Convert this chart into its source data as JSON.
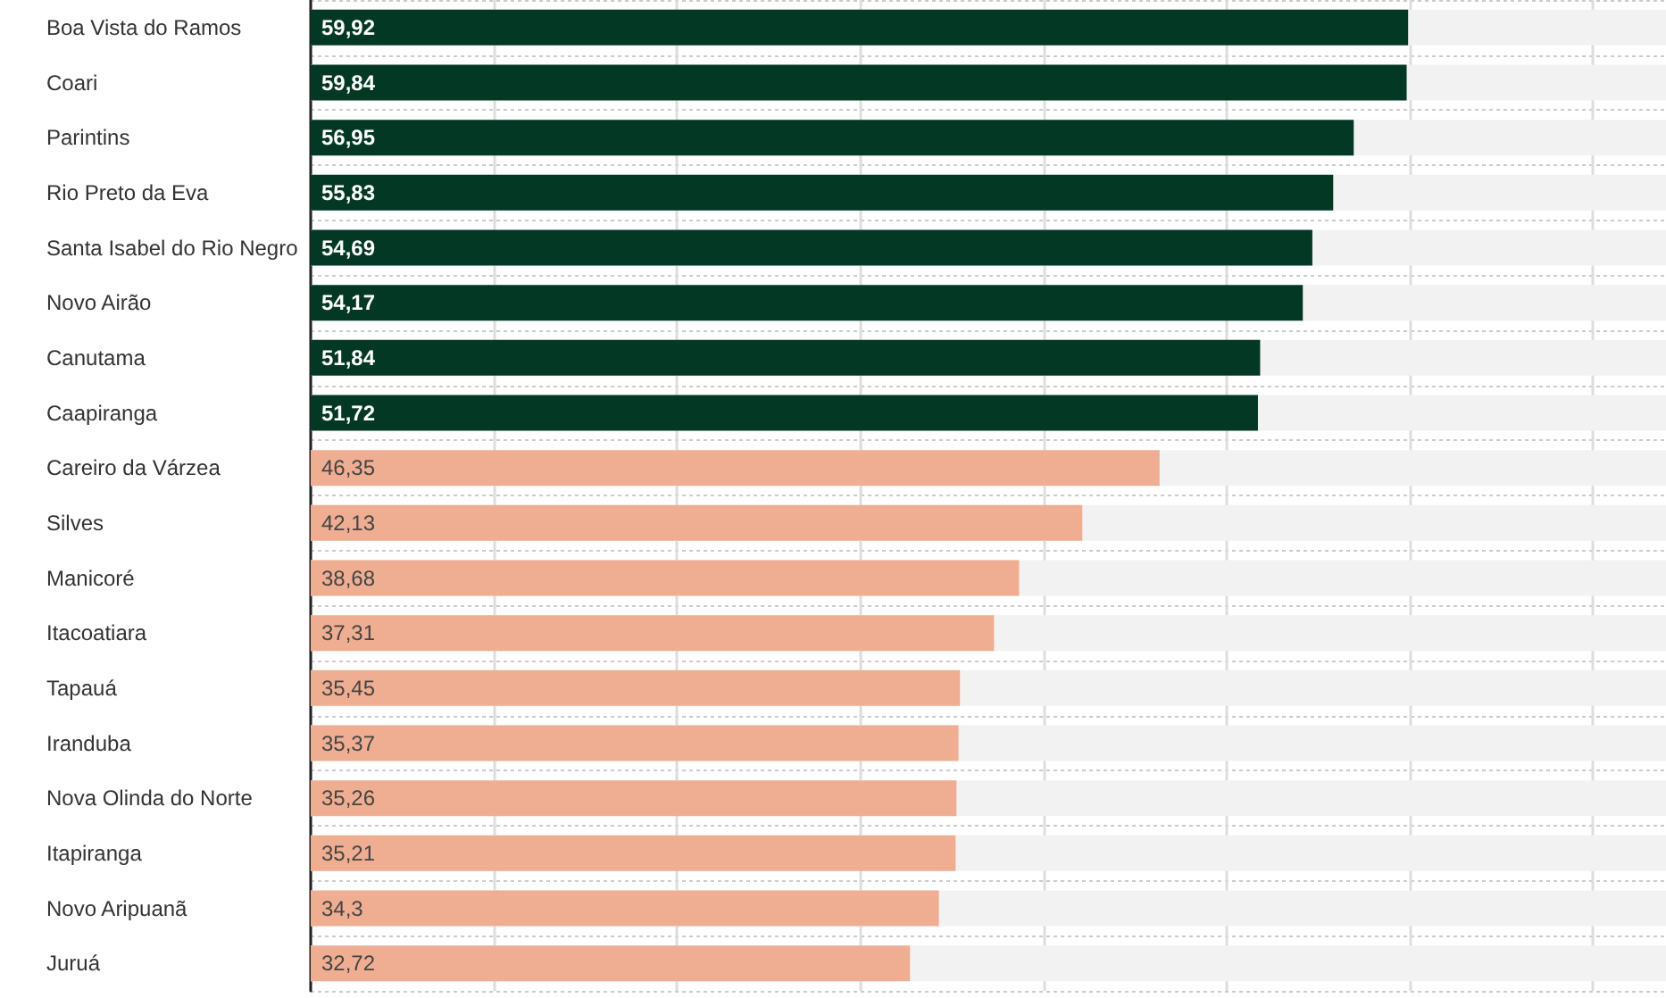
{
  "chart_data": {
    "type": "bar",
    "orientation": "horizontal",
    "categories": [
      "Boa Vista do Ramos",
      "Coari",
      "Parintins",
      "Rio Preto da Eva",
      "Santa Isabel do Rio Negro",
      "Novo Airão",
      "Canutama",
      "Caapiranga",
      "Careiro da Várzea",
      "Silves",
      "Manicoré",
      "Itacoatiara",
      "Tapauá",
      "Iranduba",
      "Nova Olinda do Norte",
      "Itapiranga",
      "Novo Aripuanã",
      "Juruá"
    ],
    "values": [
      59.92,
      59.84,
      56.95,
      55.83,
      54.69,
      54.17,
      51.84,
      51.72,
      46.35,
      42.13,
      38.68,
      37.31,
      35.45,
      35.37,
      35.26,
      35.21,
      34.3,
      32.72
    ],
    "value_labels": [
      "59,92",
      "59,84",
      "56,95",
      "55,83",
      "54,69",
      "54,17",
      "51,84",
      "51,72",
      "46,35",
      "42,13",
      "38,68",
      "37,31",
      "35,45",
      "35,37",
      "35,26",
      "35,21",
      "34,3",
      "32,72"
    ],
    "colors": [
      "#023824",
      "#023824",
      "#023824",
      "#023824",
      "#023824",
      "#023824",
      "#023824",
      "#023824",
      "#efae91",
      "#efae91",
      "#efae91",
      "#efae91",
      "#efae91",
      "#efae91",
      "#efae91",
      "#efae91",
      "#efae91",
      "#efae91"
    ],
    "xlim": [
      0,
      74
    ],
    "xticks": [
      {
        "value": 0,
        "label": null
      },
      {
        "value": 10,
        "label": null
      },
      {
        "value": 20,
        "label": null
      },
      {
        "value": 30,
        "label": null
      },
      {
        "value": 40,
        "label": null
      },
      {
        "value": 50,
        "label": null
      },
      {
        "value": 60,
        "label": null
      },
      {
        "value": 70,
        "label": null
      }
    ],
    "grid": "x",
    "tick_labels": "y"
  }
}
